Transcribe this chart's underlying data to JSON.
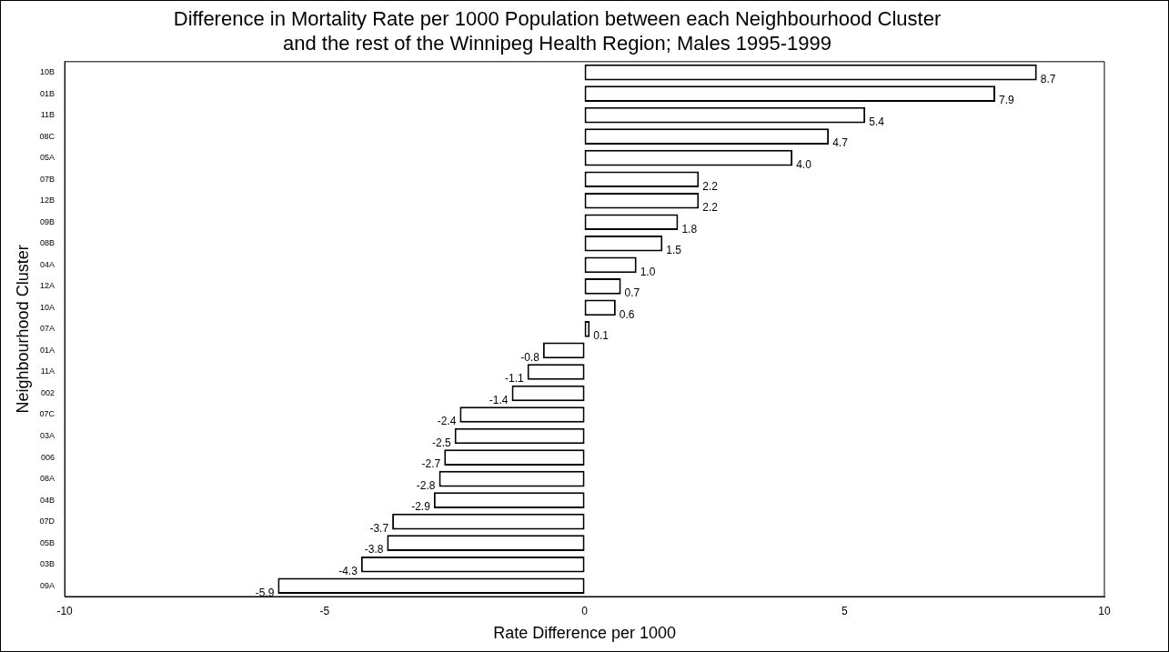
{
  "chart_data": {
    "type": "bar",
    "orientation": "horizontal",
    "title": "Difference in Mortality Rate per 1000 Population between each Neighbourhood Cluster and the rest of the Winnipeg Health Region; Males 1995-1999",
    "xlabel": "Rate Difference per 1000",
    "ylabel": "Neighbourhood Cluster",
    "categories": [
      "10B",
      "01B",
      "11B",
      "08C",
      "05A",
      "07B",
      "12B",
      "09B",
      "08B",
      "04A",
      "12A",
      "10A",
      "07A",
      "01A",
      "11A",
      "002",
      "07C",
      "03A",
      "006",
      "08A",
      "04B",
      "07D",
      "05B",
      "03B",
      "09A"
    ],
    "values": [
      8.7,
      7.9,
      5.4,
      4.7,
      4.0,
      2.2,
      2.2,
      1.8,
      1.5,
      1.0,
      0.7,
      0.6,
      0.1,
      -0.8,
      -1.1,
      -1.4,
      -2.4,
      -2.5,
      -2.7,
      -2.8,
      -2.9,
      -3.7,
      -3.8,
      -4.3,
      -5.9
    ],
    "value_labels": [
      "8.7",
      "7.9",
      "5.4",
      "4.7",
      "4.0",
      "2.2",
      "2.2",
      "1.8",
      "1.5",
      "1.0",
      "0.7",
      "0.6",
      "0.1",
      "-0.8",
      "-1.1",
      "-1.4",
      "-2.4",
      "-2.5",
      "-2.7",
      "-2.8",
      "-2.9",
      "-3.7",
      "-3.8",
      "-4.3",
      "-5.9"
    ],
    "color": "#ffffff",
    "xlim": [
      -10,
      10
    ],
    "xticks": [
      -10,
      -5,
      0,
      5,
      10
    ],
    "grid": false,
    "legend": false
  }
}
